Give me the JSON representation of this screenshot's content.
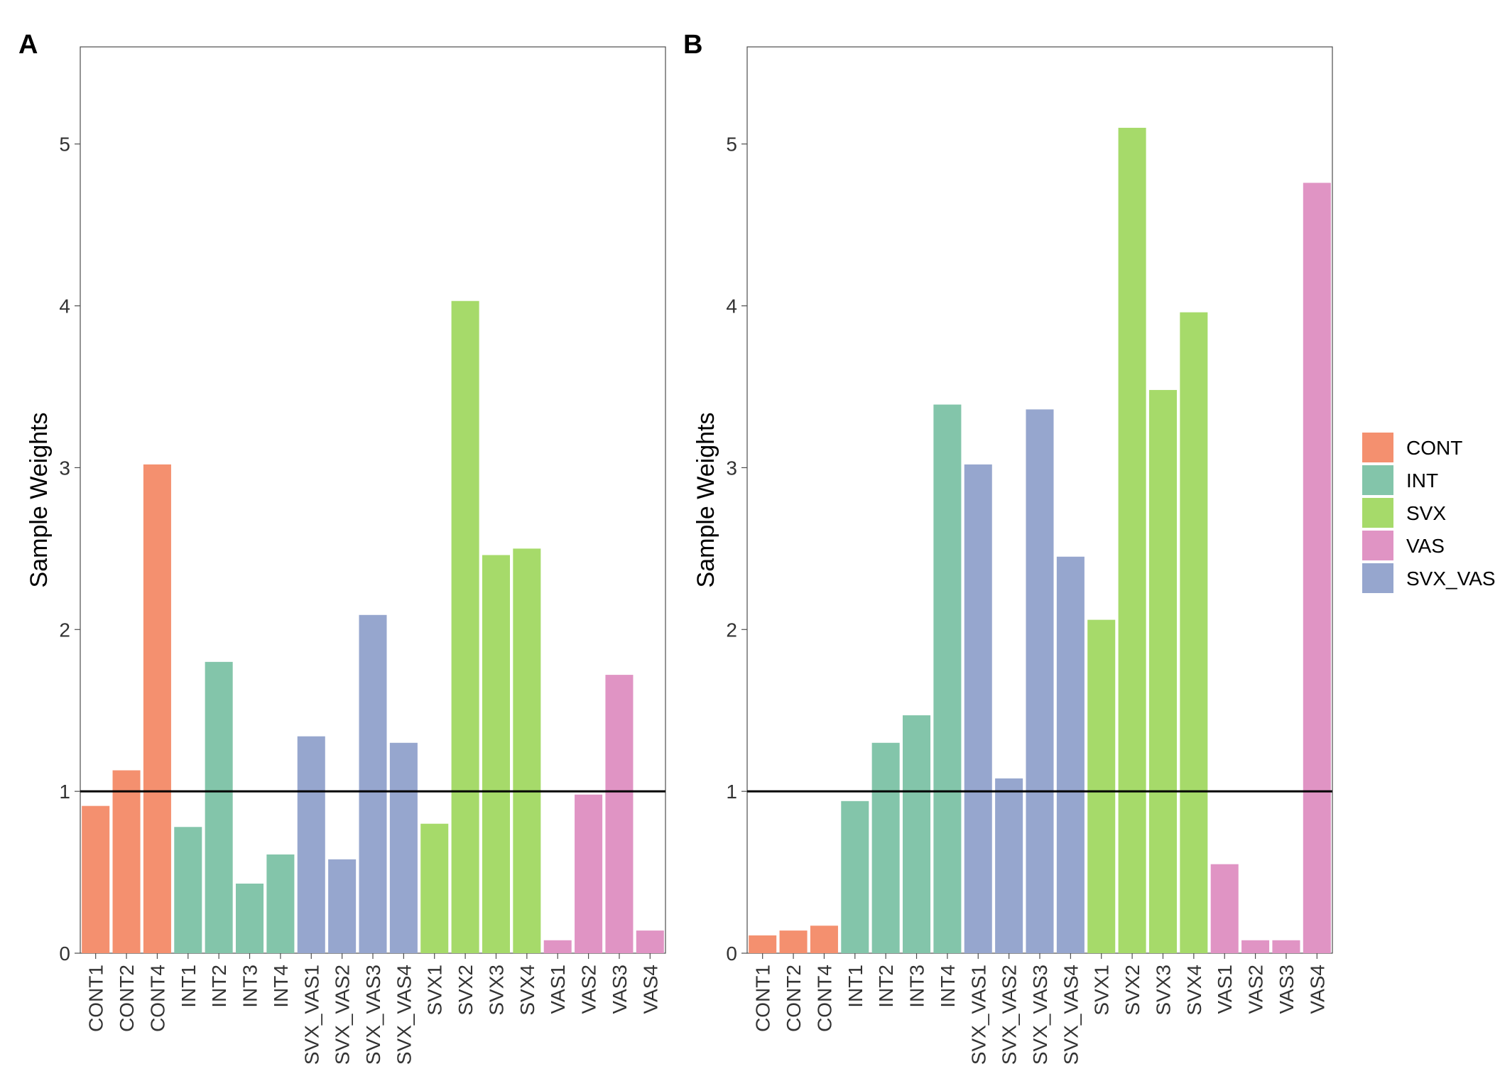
{
  "chart_data": [
    {
      "type": "bar",
      "panel": "A",
      "ylabel": "Sample Weights",
      "xlabel": "",
      "ylim": [
        0,
        5.6
      ],
      "yticks": [
        0,
        1,
        2,
        3,
        4,
        5
      ],
      "reference_line": 1,
      "grid": false,
      "categories": [
        "CONT1",
        "CONT2",
        "CONT4",
        "INT1",
        "INT2",
        "INT3",
        "INT4",
        "SVX_VAS1",
        "SVX_VAS2",
        "SVX_VAS3",
        "SVX_VAS4",
        "SVX1",
        "SVX2",
        "SVX3",
        "SVX4",
        "VAS1",
        "VAS2",
        "VAS3",
        "VAS4"
      ],
      "groups": [
        "CONT",
        "CONT",
        "CONT",
        "INT",
        "INT",
        "INT",
        "INT",
        "SVX_VAS",
        "SVX_VAS",
        "SVX_VAS",
        "SVX_VAS",
        "SVX",
        "SVX",
        "SVX",
        "SVX",
        "VAS",
        "VAS",
        "VAS",
        "VAS"
      ],
      "values": [
        0.91,
        1.13,
        3.02,
        0.78,
        1.8,
        0.43,
        0.61,
        1.34,
        0.58,
        2.09,
        1.3,
        0.8,
        4.03,
        2.46,
        2.5,
        0.08,
        0.98,
        1.72,
        0.14
      ]
    },
    {
      "type": "bar",
      "panel": "B",
      "ylabel": "Sample Weights",
      "xlabel": "",
      "ylim": [
        0,
        5.6
      ],
      "yticks": [
        0,
        1,
        2,
        3,
        4,
        5
      ],
      "reference_line": 1,
      "grid": false,
      "categories": [
        "CONT1",
        "CONT2",
        "CONT4",
        "INT1",
        "INT2",
        "INT3",
        "INT4",
        "SVX_VAS1",
        "SVX_VAS2",
        "SVX_VAS3",
        "SVX_VAS4",
        "SVX1",
        "SVX2",
        "SVX3",
        "SVX4",
        "VAS1",
        "VAS2",
        "VAS3",
        "VAS4"
      ],
      "groups": [
        "CONT",
        "CONT",
        "CONT",
        "INT",
        "INT",
        "INT",
        "INT",
        "SVX_VAS",
        "SVX_VAS",
        "SVX_VAS",
        "SVX_VAS",
        "SVX",
        "SVX",
        "SVX",
        "SVX",
        "VAS",
        "VAS",
        "VAS",
        "VAS"
      ],
      "values": [
        0.11,
        0.14,
        0.17,
        0.94,
        1.3,
        1.47,
        3.39,
        3.02,
        1.08,
        3.36,
        2.45,
        2.06,
        5.1,
        3.48,
        3.96,
        0.55,
        0.08,
        0.08,
        4.76
      ]
    }
  ],
  "legend": {
    "placement": "right",
    "items": [
      {
        "label": "CONT",
        "color": "#F4906F"
      },
      {
        "label": "INT",
        "color": "#83C5AA"
      },
      {
        "label": "SVX",
        "color": "#A6DA6A"
      },
      {
        "label": "VAS",
        "color": "#E094C4"
      },
      {
        "label": "SVX_VAS",
        "color": "#96A6CE"
      }
    ]
  }
}
